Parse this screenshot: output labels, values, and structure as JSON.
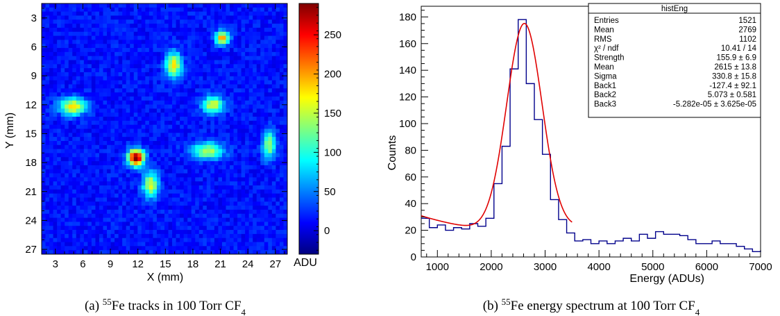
{
  "chart_data": [
    {
      "type": "heatmap",
      "caption": {
        "label": "(a) ",
        "sup": "55",
        "main": "Fe tracks in 100 Torr CF",
        "sub": "4"
      },
      "xlabel": "X (mm)",
      "ylabel": "Y (mm)",
      "xlim": [
        1.5,
        28.3
      ],
      "ylim": [
        1.5,
        27.5
      ],
      "y_inverted": true,
      "xticks": [
        "3",
        "6",
        "9",
        "12",
        "15",
        "18",
        "21",
        "24",
        "27"
      ],
      "xtick_values": [
        3,
        6,
        9,
        12,
        15,
        18,
        21,
        24,
        27
      ],
      "yticks": [
        "3",
        "6",
        "9",
        "12",
        "15",
        "18",
        "21",
        "24",
        "27"
      ],
      "ytick_values": [
        3,
        6,
        9,
        12,
        15,
        18,
        21,
        24,
        27
      ],
      "background_adu": 15,
      "tracks": [
        {
          "x": 21.2,
          "y": 5.1,
          "peak_adu": 190,
          "sx": 0.5,
          "sy": 0.5
        },
        {
          "x": 15.9,
          "y": 7.9,
          "peak_adu": 160,
          "sx": 0.6,
          "sy": 0.9
        },
        {
          "x": 4.9,
          "y": 12.2,
          "peak_adu": 160,
          "sx": 1.0,
          "sy": 0.6
        },
        {
          "x": 20.2,
          "y": 12.0,
          "peak_adu": 150,
          "sx": 0.8,
          "sy": 0.6
        },
        {
          "x": 26.3,
          "y": 16.1,
          "peak_adu": 130,
          "sx": 0.5,
          "sy": 1.0
        },
        {
          "x": 19.6,
          "y": 16.8,
          "peak_adu": 130,
          "sx": 1.2,
          "sy": 0.6
        },
        {
          "x": 11.8,
          "y": 17.5,
          "peak_adu": 290,
          "sx": 0.6,
          "sy": 0.6
        },
        {
          "x": 13.4,
          "y": 20.3,
          "peak_adu": 140,
          "sx": 0.6,
          "sy": 0.9
        }
      ],
      "colorbar": {
        "min": -30,
        "max": 290,
        "ticks": [
          "0",
          "50",
          "100",
          "150",
          "200",
          "250"
        ],
        "tick_values": [
          0,
          50,
          100,
          150,
          200,
          250
        ],
        "label": "ADU",
        "colormap": [
          "#00007f",
          "#0000ff",
          "#007fff",
          "#00ffff",
          "#7fff7f",
          "#ffff00",
          "#ff7f00",
          "#ff0000",
          "#7f0000"
        ]
      }
    },
    {
      "type": "histogram",
      "caption": {
        "label": "(b) ",
        "sup": "55",
        "main": "Fe energy spectrum at 100 Torr CF",
        "sub": "4"
      },
      "xlabel": "Energy (ADUs)",
      "ylabel": "Counts",
      "xlim": [
        700,
        7000
      ],
      "ylim": [
        0,
        188
      ],
      "xticks": [
        "1000",
        "2000",
        "3000",
        "4000",
        "5000",
        "6000",
        "7000"
      ],
      "xtick_values": [
        1000,
        2000,
        3000,
        4000,
        5000,
        6000,
        7000
      ],
      "yticks": [
        "0",
        "20",
        "40",
        "60",
        "80",
        "100",
        "120",
        "140",
        "160",
        "180"
      ],
      "ytick_values": [
        0,
        20,
        40,
        60,
        80,
        100,
        120,
        140,
        160,
        180
      ],
      "bin_start": 700,
      "bin_width": 150,
      "counts": [
        29,
        22,
        24,
        20,
        22,
        21,
        25,
        23,
        29,
        55,
        83,
        141,
        178,
        130,
        103,
        77,
        43,
        28,
        18,
        12,
        13,
        10,
        12,
        10,
        12,
        14,
        12,
        17,
        14,
        19,
        17,
        17,
        16,
        13,
        10,
        10,
        12,
        10,
        10,
        8,
        6,
        4,
        5
      ],
      "line_color": "#00008b",
      "fit": {
        "color": "#e00000",
        "strength": 155.9,
        "mean": 2615,
        "sigma": 330.8,
        "back1": -127.4,
        "back2": 5.073,
        "back3": -5.282e-05,
        "x_range": [
          700,
          3500
        ]
      },
      "stats_box": {
        "title": "histEng",
        "rows": [
          {
            "name": "Entries",
            "value": "1521"
          },
          {
            "name": "Mean",
            "value": "2769"
          },
          {
            "name": "RMS",
            "value": "1102"
          },
          {
            "name": "χ² / ndf",
            "value": "10.41 / 14"
          },
          {
            "name": "Strength",
            "value": "155.9 ± 6.9"
          },
          {
            "name": "Mean",
            "value": "2615 ± 13.8"
          },
          {
            "name": "Sigma",
            "value": "330.8 ± 15.8"
          },
          {
            "name": "Back1",
            "value": "-127.4 ± 92.1"
          },
          {
            "name": "Back2",
            "value": "5.073 ± 0.581"
          },
          {
            "name": "Back3",
            "value": "-5.282e-05 ± 3.625e-05"
          }
        ]
      }
    }
  ]
}
